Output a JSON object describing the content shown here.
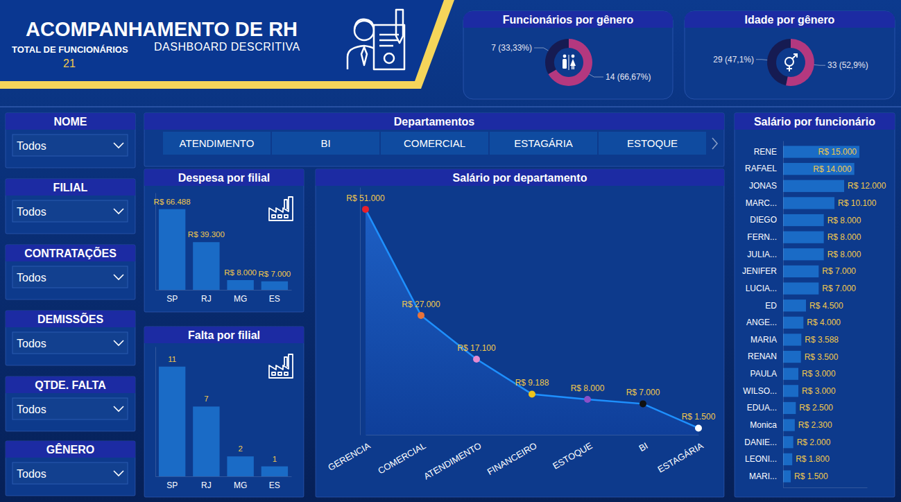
{
  "header": {
    "title": "ACOMPANHAMENTO DE RH",
    "subtitle": "DASHBOARD DESCRITIVA",
    "kpi_label": "TOTAL DE FUNCIONÁRIOS",
    "kpi_value": 21
  },
  "filters": [
    {
      "label": "NOME",
      "value": "Todos"
    },
    {
      "label": "FILIAL",
      "value": "Todos"
    },
    {
      "label": "CONTRATAÇÕES",
      "value": "Todos"
    },
    {
      "label": "DEMISSÕES",
      "value": "Todos"
    },
    {
      "label": "QTDE. FALTA",
      "value": "Todos"
    },
    {
      "label": "GÊNERO",
      "value": "Todos"
    }
  ],
  "slicer": {
    "title": "Departamentos",
    "items": [
      "ATENDIMENTO",
      "BI",
      "COMERCIAL",
      "ESTAGÁRIA",
      "ESTOQUE"
    ]
  },
  "chart_data": [
    {
      "type": "donut",
      "title": "Funcionários por gênero",
      "values": [
        7,
        14
      ],
      "value_labels": [
        "7 (33,33%)",
        "14 (66,67%)"
      ],
      "colors": [
        "#161b52",
        "#b4387f"
      ],
      "data_labels": true
    },
    {
      "type": "donut",
      "title": "Idade por gênero",
      "values": [
        29,
        33
      ],
      "value_labels": [
        "29 (47,1%)",
        "33 (52,9%)"
      ],
      "colors": [
        "#161b52",
        "#b4387f"
      ],
      "data_labels": true
    },
    {
      "type": "bar",
      "title": "Despesa por filial",
      "categories": [
        "SP",
        "RJ",
        "MG",
        "ES"
      ],
      "values": [
        66488,
        39300,
        8000,
        7000
      ],
      "value_labels": [
        "R$ 66.488",
        "R$ 39.300",
        "R$ 8.000",
        "R$ 7.000"
      ],
      "color": "#1a6bc6",
      "ylim": [
        0,
        80000
      ],
      "data_labels": true,
      "tick_labels": "x"
    },
    {
      "type": "bar",
      "title": "Falta por filial",
      "categories": [
        "SP",
        "RJ",
        "MG",
        "ES"
      ],
      "values": [
        11,
        7,
        2,
        1
      ],
      "color": "#1a6bc6",
      "ylim": [
        0,
        13
      ],
      "data_labels": true,
      "tick_labels": "x"
    },
    {
      "type": "area",
      "title": "Salário por departamento",
      "categories": [
        "GERENCIA",
        "COMERCIAL",
        "ATENDIMENTO",
        "FINANCEIRO",
        "ESTOQUE",
        "BI",
        "ESTAGÁRIA"
      ],
      "values": [
        51000,
        27000,
        17100,
        9188,
        8000,
        7000,
        1500
      ],
      "value_labels": [
        "R$ 51.000",
        "R$ 27.000",
        "R$ 17.100",
        "R$ 9.188",
        "R$ 8.000",
        "R$ 7.000",
        "R$ 1.500"
      ],
      "color": "#1e90ff",
      "colors": [
        "#e8202a",
        "#e8733a",
        "#e58ad0",
        "#f0c419",
        "#8a4fc8",
        "#111111",
        "#ffffff"
      ],
      "marker": "circle",
      "ylim": [
        0,
        56000
      ],
      "data_labels": true,
      "tick_labels": "x"
    },
    {
      "type": "bar",
      "orientation": "horizontal",
      "title": "Salário por funcionário",
      "categories": [
        "RENE",
        "RAFAEL",
        "JONAS",
        "MARC...",
        "DIEGO",
        "FERN...",
        "JULIA...",
        "JENIFER",
        "LUCIA...",
        "ED",
        "ANGE...",
        "MARIA",
        "RENAN",
        "PAULA",
        "WILSO...",
        "EDUA...",
        "Monica",
        "DANIE...",
        "LEONI...",
        "MARI..."
      ],
      "values": [
        15000,
        14000,
        12000,
        10100,
        8000,
        8000,
        8000,
        7000,
        7000,
        4500,
        4000,
        3588,
        3500,
        3000,
        3000,
        2500,
        2300,
        2000,
        1800,
        1500
      ],
      "value_labels": [
        "R$ 15.000",
        "R$ 14.000",
        "R$ 12.000",
        "R$ 10.100",
        "R$ 8.000",
        "R$ 8.000",
        "R$ 8.000",
        "R$ 7.000",
        "R$ 7.000",
        "R$ 4.500",
        "R$ 4.000",
        "R$ 3.588",
        "R$ 3.500",
        "R$ 3.000",
        "R$ 3.000",
        "R$ 2.500",
        "R$ 2.300",
        "R$ 2.000",
        "R$ 1.800",
        "R$ 1.500"
      ],
      "color": "#1a6bc6",
      "xlim": [
        0,
        16500
      ],
      "data_labels": true,
      "tick_labels": "y"
    }
  ]
}
